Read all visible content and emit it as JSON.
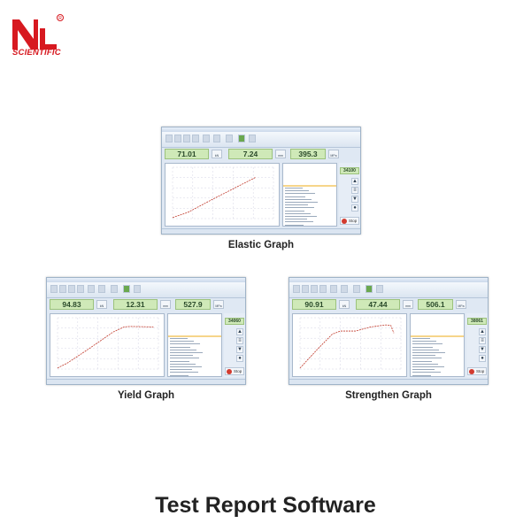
{
  "brand": {
    "name": "NL",
    "subtitle": "SCIENTIFIC",
    "registered": "®",
    "color": "#d71920"
  },
  "graphs": [
    {
      "caption": "Elastic Graph",
      "shape": "elastic",
      "readouts": [
        {
          "value": "71.01",
          "unit": "kN"
        },
        {
          "value": "7.24",
          "unit": "mm"
        },
        {
          "value": "395.3",
          "unit": "MPa"
        }
      ],
      "count": "34100",
      "stop_label": "Stop"
    },
    {
      "caption": "Yield Graph",
      "shape": "yield",
      "readouts": [
        {
          "value": "94.83",
          "unit": "kN"
        },
        {
          "value": "12.31",
          "unit": "mm"
        },
        {
          "value": "527.9",
          "unit": "MPa"
        }
      ],
      "count": "34060",
      "stop_label": "Stop"
    },
    {
      "caption": "Strengthen Graph",
      "shape": "strengthen",
      "readouts": [
        {
          "value": "90.91",
          "unit": "kN"
        },
        {
          "value": "47.44",
          "unit": "mm"
        },
        {
          "value": "506.1",
          "unit": "MPa"
        }
      ],
      "count": "38061",
      "stop_label": "Stop"
    }
  ],
  "title": "Test Report Software",
  "colors": {
    "readout_bg": "#cfe9b8",
    "curve": "#c0392b",
    "window_bg": "#dfe8f3"
  }
}
